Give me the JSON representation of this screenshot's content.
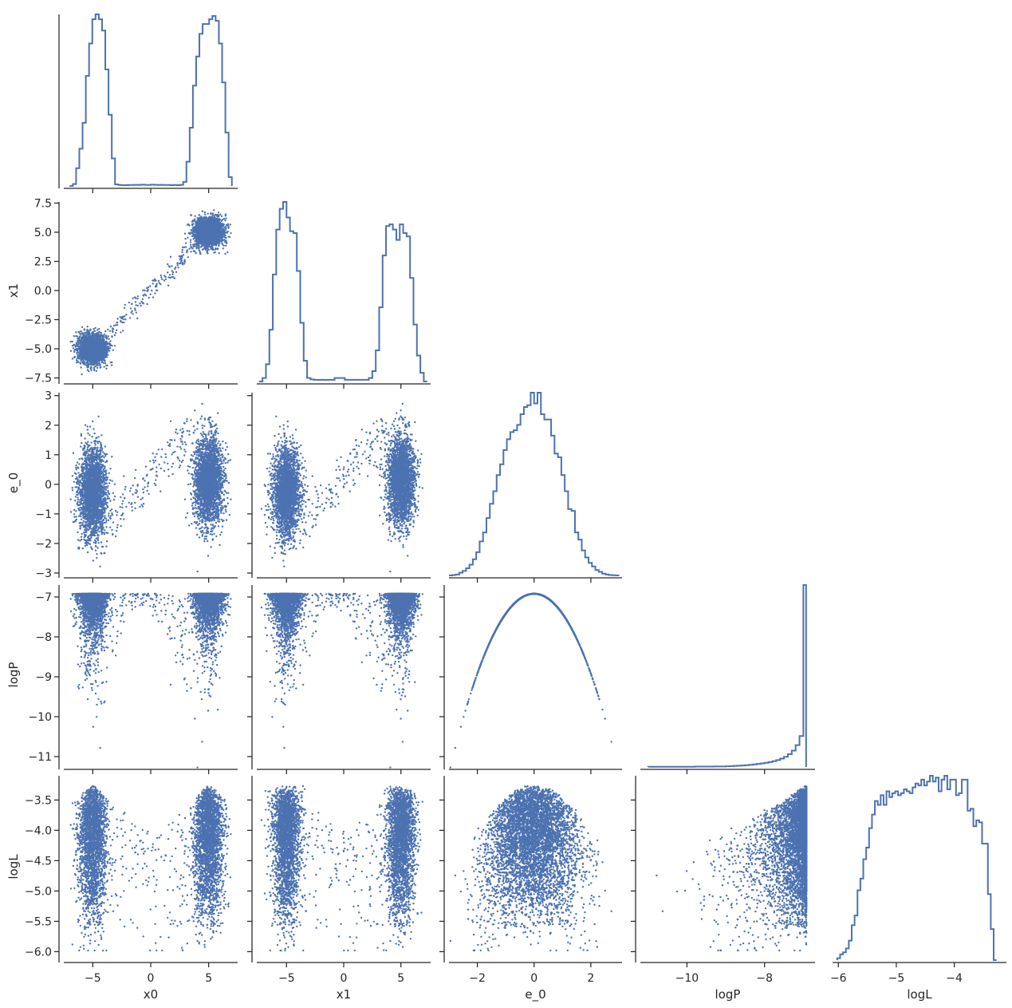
{
  "chart_data": {
    "type": "pairplot_corner",
    "style": {
      "color": "#4c72b0",
      "grid": false,
      "legend": "none"
    },
    "variables": [
      "x0",
      "x1",
      "e_0",
      "logP",
      "logL"
    ],
    "axis_labels": {
      "x": [
        "x0",
        "x1",
        "e_0",
        "logP",
        "logL"
      ],
      "y": [
        "x1",
        "e_0",
        "logP",
        "logL"
      ]
    },
    "ranges": {
      "x0": [
        -7.5,
        7.5
      ],
      "x1": [
        -7.6,
        7.6
      ],
      "e_0": [
        -3.0,
        3.1
      ],
      "logP": [
        -11.2,
        -6.7
      ],
      "logL": [
        -6.1,
        -3.1
      ]
    },
    "ticks": {
      "x0": {
        "values": [
          -5,
          0,
          5
        ],
        "labels": [
          "−5",
          "0",
          "5"
        ]
      },
      "x1": {
        "values": [
          -7.5,
          -5.0,
          -2.5,
          0.0,
          2.5,
          5.0,
          7.5
        ],
        "labels": [
          "−7.5",
          "−5.0",
          "−2.5",
          "0.0",
          "2.5",
          "5.0",
          "7.5"
        ]
      },
      "x1_bottom": {
        "values": [
          -5,
          0,
          5
        ],
        "labels": [
          "−5",
          "0",
          "5"
        ]
      },
      "e_0": {
        "values": [
          -3,
          -2,
          -1,
          0,
          1,
          2,
          3
        ],
        "labels": [
          "−3",
          "−2",
          "−1",
          "0",
          "1",
          "2",
          "3"
        ]
      },
      "e_0_bottom": {
        "values": [
          -2,
          0,
          2
        ],
        "labels": [
          "−2",
          "0",
          "2"
        ]
      },
      "logP": {
        "values": [
          -11,
          -10,
          -9,
          -8,
          -7
        ],
        "labels": [
          "−11",
          "−10",
          "−9",
          "−8",
          "−7"
        ]
      },
      "logP_bottom": {
        "values": [
          -10,
          -8
        ],
        "labels": [
          "−10",
          "−8"
        ]
      },
      "logL": {
        "values": [
          -6.0,
          -5.5,
          -5.0,
          -4.5,
          -4.0,
          -3.5
        ],
        "labels": [
          "−6.0",
          "−5.5",
          "−5.0",
          "−4.5",
          "−4.0",
          "−3.5"
        ]
      },
      "logL_bottom": {
        "values": [
          -6,
          -5,
          -4
        ],
        "labels": [
          "−6",
          "−5",
          "−4"
        ]
      }
    },
    "histograms": {
      "x0": {
        "bins": [
          -7.0,
          -6.72,
          -6.44,
          -6.16,
          -5.88,
          -5.6,
          -5.32,
          -5.04,
          -4.76,
          -4.48,
          -4.2,
          -3.92,
          -3.64,
          -3.36,
          -3.08,
          -2.8,
          -2.52,
          -2.24,
          -1.96,
          -1.68,
          -1.4,
          -1.12,
          -0.84,
          -0.56,
          -0.28,
          0.0,
          0.28,
          0.56,
          0.84,
          1.12,
          1.4,
          1.68,
          1.96,
          2.24,
          2.52,
          2.8,
          3.08,
          3.36,
          3.64,
          3.92,
          4.2,
          4.48,
          4.76,
          5.04,
          5.32,
          5.6,
          5.88,
          6.16,
          6.44,
          6.72,
          7.0
        ],
        "counts": [
          0,
          12,
          110,
          230,
          390,
          680,
          880,
          1030,
          1060,
          1030,
          960,
          720,
          440,
          170,
          10,
          6,
          5,
          5,
          6,
          6,
          7,
          6,
          8,
          7,
          6,
          8,
          7,
          6,
          7,
          6,
          6,
          5,
          6,
          5,
          7,
          25,
          150,
          360,
          620,
          800,
          940,
          1000,
          1000,
          1030,
          1050,
          1020,
          880,
          640,
          330,
          55
        ]
      },
      "x1": {
        "bins": [
          -7.4,
          -7.1,
          -6.8,
          -6.5,
          -6.2,
          -5.9,
          -5.6,
          -5.3,
          -5.0,
          -4.7,
          -4.4,
          -4.1,
          -3.8,
          -3.5,
          -3.2,
          -2.9,
          -2.6,
          -2.3,
          -2.0,
          -1.7,
          -1.4,
          -1.1,
          -0.8,
          -0.5,
          -0.2,
          0.1,
          0.4,
          0.7,
          1.0,
          1.3,
          1.6,
          1.9,
          2.2,
          2.5,
          2.8,
          3.1,
          3.4,
          3.7,
          4.0,
          4.3,
          4.6,
          4.9,
          5.2,
          5.5,
          5.8,
          6.1,
          6.4,
          6.7,
          7.0,
          7.3
        ],
        "counts": [
          0,
          20,
          100,
          300,
          620,
          880,
          1000,
          1040,
          950,
          870,
          860,
          640,
          340,
          120,
          20,
          12,
          10,
          9,
          10,
          9,
          10,
          10,
          20,
          20,
          20,
          10,
          10,
          10,
          10,
          10,
          10,
          10,
          20,
          60,
          180,
          430,
          730,
          900,
          910,
          880,
          820,
          910,
          860,
          840,
          600,
          330,
          150,
          50,
          0
        ]
      },
      "e_0": {
        "bins": [
          -3.0,
          -2.88,
          -2.76,
          -2.64,
          -2.52,
          -2.4,
          -2.28,
          -2.16,
          -2.04,
          -1.92,
          -1.8,
          -1.68,
          -1.56,
          -1.44,
          -1.32,
          -1.2,
          -1.08,
          -0.96,
          -0.84,
          -0.72,
          -0.6,
          -0.48,
          -0.36,
          -0.24,
          -0.12,
          0.0,
          0.12,
          0.24,
          0.36,
          0.48,
          0.6,
          0.72,
          0.84,
          0.96,
          1.08,
          1.2,
          1.32,
          1.44,
          1.56,
          1.68,
          1.8,
          1.92,
          2.04,
          2.16,
          2.28,
          2.4,
          2.52,
          2.64,
          2.76,
          2.88,
          3.0
        ],
        "counts": [
          0,
          2,
          5,
          15,
          25,
          40,
          60,
          90,
          130,
          190,
          240,
          320,
          400,
          470,
          560,
          620,
          700,
          760,
          800,
          810,
          840,
          900,
          940,
          950,
          1020,
          960,
          1020,
          900,
          870,
          870,
          780,
          680,
          660,
          560,
          470,
          370,
          360,
          240,
          200,
          140,
          100,
          70,
          50,
          30,
          20,
          10,
          5,
          2,
          1,
          0
        ]
      },
      "logP": {
        "bins": [
          -11.0,
          -10.9,
          -10.8,
          -10.7,
          -10.6,
          -10.5,
          -10.4,
          -10.3,
          -10.2,
          -10.1,
          -10.0,
          -9.9,
          -9.8,
          -9.7,
          -9.6,
          -9.5,
          -9.4,
          -9.3,
          -9.2,
          -9.1,
          -9.0,
          -8.9,
          -8.8,
          -8.7,
          -8.6,
          -8.5,
          -8.4,
          -8.3,
          -8.2,
          -8.1,
          -8.0,
          -7.9,
          -7.8,
          -7.7,
          -7.6,
          -7.5,
          -7.4,
          -7.3,
          -7.2,
          -7.1,
          -7.0,
          -6.93
        ],
        "counts": [
          1,
          1,
          1,
          1,
          1,
          1,
          1,
          1,
          1,
          1,
          1,
          1,
          2,
          2,
          2,
          2,
          2,
          3,
          3,
          3,
          4,
          5,
          6,
          7,
          8,
          10,
          12,
          14,
          17,
          20,
          23,
          27,
          32,
          38,
          46,
          56,
          70,
          90,
          120,
          170,
          1000
        ]
      },
      "logL": {
        "bins": [
          -6.02,
          -5.97,
          -5.92,
          -5.87,
          -5.82,
          -5.77,
          -5.72,
          -5.67,
          -5.62,
          -5.57,
          -5.52,
          -5.47,
          -5.42,
          -5.37,
          -5.32,
          -5.27,
          -5.22,
          -5.17,
          -5.12,
          -5.07,
          -5.02,
          -4.97,
          -4.92,
          -4.87,
          -4.82,
          -4.77,
          -4.72,
          -4.67,
          -4.62,
          -4.57,
          -4.52,
          -4.47,
          -4.42,
          -4.37,
          -4.32,
          -4.27,
          -4.22,
          -4.17,
          -4.12,
          -4.07,
          -4.02,
          -3.97,
          -3.92,
          -3.87,
          -3.82,
          -3.77,
          -3.72,
          -3.67,
          -3.62,
          -3.57,
          -3.52,
          -3.47,
          -3.42,
          -3.37,
          -3.32,
          -3.27
        ],
        "counts": [
          1,
          3,
          4,
          6,
          10,
          18,
          23,
          36,
          42,
          52,
          58,
          68,
          75,
          82,
          80,
          85,
          80,
          87,
          84,
          86,
          87,
          85,
          86,
          88,
          87,
          86,
          89,
          91,
          90,
          93,
          90,
          92,
          95,
          92,
          94,
          87,
          93,
          95,
          88,
          93,
          93,
          85,
          86,
          93,
          93,
          77,
          78,
          69,
          72,
          71,
          60,
          60,
          34,
          16,
          0
        ]
      }
    },
    "scatter_description": {
      "x1_vs_x0": "two dense clusters near (-5,-5) and (5,5) joined by a sparse linear bridge",
      "e_0_vs_x0": "two vertical clusters at x0≈±5 spanning e_0 −2.5…2; sparse bridge rising from (−3,−1) to (3,2)",
      "e_0_vs_x1": "two vertical clusters at x1≈±5; sparse diagonal bridge",
      "logP_vs_x0": "clusters at x0≈±5 hugging logP≈−7 with tails to −11",
      "logP_vs_x1": "clusters at x1≈±5 hugging logP≈−7 with tails to −11",
      "logP_vs_e_0": "deterministic parabola logP ≈ −6.92 − 0.5·e_0²",
      "logL_vs_x0": "two columns at x0≈±5 spanning logL −5.9…−3.2",
      "logL_vs_x1": "two columns at x1≈±5 spanning logL −5.9…−3.2",
      "logL_vs_e_0": "triangular cloud peaking near e_0≈0, logL≈−3.2",
      "logL_vs_logP": "wedge concentrated at logP≈−7"
    }
  }
}
